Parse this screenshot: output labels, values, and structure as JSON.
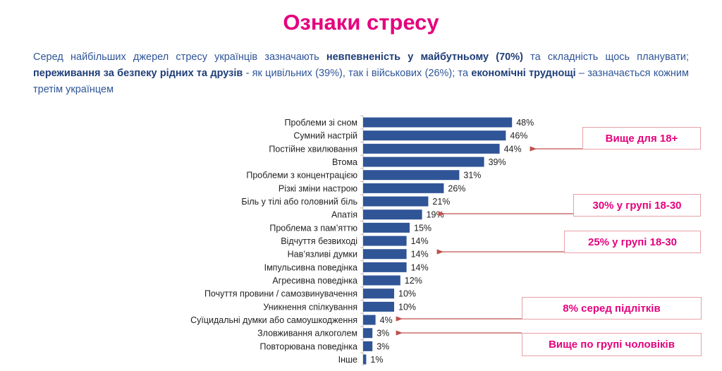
{
  "title": "Ознаки стресу",
  "intro": {
    "p1": "Серед найбільших джерел стресу українців зазначають ",
    "b1": "невпевненість у майбутньому (70%)",
    "p2": " та складність щось планувати; ",
    "b2": "переживання за безпеку рідних та друзів",
    "p3": " - як цивільних (39%), так і військових (26%); та ",
    "b3": "економічні труднощі",
    "p4": " – зазначається кожним третім українцем"
  },
  "colors": {
    "bar": "#2f5597",
    "title": "#e5007d",
    "arrow": "#c0504d"
  },
  "chart_data": {
    "type": "bar",
    "orientation": "horizontal",
    "categories": [
      "Проблеми зі сном",
      "Сумний настрій",
      "Постійне хвилювання",
      "Втома",
      "Проблеми з концентрацією",
      "Різкі зміни настрою",
      "Біль у тілі або головний біль",
      "Апатія",
      "Проблема з пам’яттю",
      "Відчуття безвиході",
      "Нав’язливі думки",
      "Імпульсивна поведінка",
      "Агресивна поведінка",
      "Почуття провини / самозвинувачення",
      "Уникнення спілкування",
      "Суїцидальні думки або самоушкодження",
      "Зловживання алкоголем",
      "Повторювана поведінка",
      "Інше"
    ],
    "values": [
      48,
      46,
      44,
      39,
      31,
      26,
      21,
      19,
      15,
      14,
      14,
      14,
      12,
      10,
      10,
      4,
      3,
      3,
      1
    ],
    "value_suffix": "%",
    "grid": false
  },
  "callouts": [
    {
      "text": "Вище для 18+",
      "target": "Постійне хвилювання"
    },
    {
      "text": "30% у групі 18-30",
      "target": "Апатія"
    },
    {
      "text": "25% у групі 18-30",
      "target": "Нав’язливі думки"
    },
    {
      "text": "8% серед підлітків",
      "target": "Суїцидальні думки або самоушкодження"
    },
    {
      "text": "Вище по групі чоловіків",
      "target": "Зловживання алкоголем"
    }
  ]
}
